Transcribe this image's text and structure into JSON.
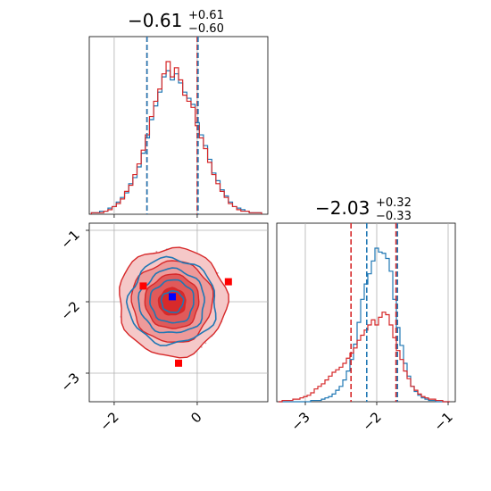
{
  "chart_data": [
    {
      "type": "histogram",
      "panel": "top-left",
      "title": {
        "value": "−0.61",
        "upper": "+0.61",
        "lower": "−0.60"
      },
      "xlim": [
        -2.6,
        1.7
      ],
      "series": [
        {
          "name": "",
          "color": "#1f77b4",
          "bins": [
            -2.5,
            -2.4,
            -2.3,
            -2.2,
            -2.1,
            -2.0,
            -1.9,
            -1.8,
            -1.7,
            -1.6,
            -1.5,
            -1.4,
            -1.3,
            -1.2,
            -1.1,
            -1.0,
            -0.9,
            -0.8,
            -0.7,
            -0.6,
            -0.5,
            -0.4,
            -0.3,
            -0.2,
            -0.1,
            0.0,
            0.1,
            0.2,
            0.3,
            0.4,
            0.5,
            0.6,
            0.7,
            0.8,
            0.9,
            1.0,
            1.1,
            1.2,
            1.3,
            1.4,
            1.5
          ],
          "counts": [
            1,
            1,
            2,
            2,
            4,
            5,
            8,
            11,
            14,
            20,
            24,
            31,
            40,
            50,
            62,
            71,
            80,
            90,
            94,
            88,
            92,
            86,
            80,
            76,
            72,
            60,
            52,
            45,
            36,
            27,
            22,
            16,
            12,
            8,
            5,
            4,
            3,
            2,
            1,
            1,
            1
          ]
        },
        {
          "name": "",
          "color": "#d62728",
          "bins": [
            -2.5,
            -2.4,
            -2.3,
            -2.2,
            -2.1,
            -2.0,
            -1.9,
            -1.8,
            -1.7,
            -1.6,
            -1.5,
            -1.4,
            -1.3,
            -1.2,
            -1.1,
            -1.0,
            -0.9,
            -0.8,
            -0.7,
            -0.6,
            -0.5,
            -0.4,
            -0.3,
            -0.2,
            -0.1,
            0.0,
            0.1,
            0.2,
            0.3,
            0.4,
            0.5,
            0.6,
            0.7,
            0.8,
            0.9,
            1.0,
            1.1,
            1.2,
            1.3,
            1.4,
            1.5
          ],
          "counts": [
            1,
            1,
            1,
            2,
            3,
            5,
            7,
            10,
            15,
            19,
            26,
            33,
            42,
            52,
            64,
            74,
            82,
            92,
            100,
            90,
            96,
            88,
            78,
            74,
            70,
            58,
            50,
            43,
            34,
            26,
            20,
            15,
            11,
            7,
            5,
            3,
            2,
            2,
            1,
            1,
            1
          ]
        }
      ],
      "vlines": [
        {
          "x": -1.21,
          "color": "#d62728"
        },
        {
          "x": -1.21,
          "color": "#1f77b4"
        },
        {
          "x": 0.0,
          "color": "#d62728"
        },
        {
          "x": 0.02,
          "color": "#1f77b4"
        }
      ],
      "xticks": [
        -2,
        0
      ],
      "grid": true
    },
    {
      "type": "contour",
      "panel": "bottom-left",
      "xlim": [
        -2.6,
        1.7
      ],
      "ylim": [
        -3.4,
        -0.9
      ],
      "xtick_labels": [
        "−2",
        "0"
      ],
      "xticks": [
        -2,
        0
      ],
      "ytick_labels": [
        "−1",
        "−2",
        "−3"
      ],
      "yticks": [
        -1,
        -2,
        -3
      ],
      "series": [
        {
          "name": "",
          "color": "#d62728",
          "center": [
            -0.6,
            -2.0
          ],
          "spread": [
            0.65,
            0.38
          ],
          "levels": [
            0.5,
            1.0,
            1.5,
            2.0
          ],
          "filled": true
        },
        {
          "name": "",
          "color": "#1f77b4",
          "center": [
            -0.6,
            -2.0
          ],
          "spread": [
            0.62,
            0.2
          ],
          "levels": [
            0.5,
            1.0,
            1.5,
            2.0
          ],
          "filled": false
        }
      ],
      "points": [
        {
          "x": -1.3,
          "y": -1.78,
          "color": "#ff0000",
          "shape": "square"
        },
        {
          "x": 0.75,
          "y": -1.72,
          "color": "#ff0000",
          "shape": "square"
        },
        {
          "x": -0.45,
          "y": -2.86,
          "color": "#ff0000",
          "shape": "square"
        },
        {
          "x": -0.6,
          "y": -1.93,
          "color": "#0000ff",
          "shape": "square"
        }
      ],
      "grid": true
    },
    {
      "type": "histogram",
      "panel": "bottom-right",
      "title": {
        "value": "−2.03",
        "upper": "+0.32",
        "lower": "−0.33"
      },
      "xlim": [
        -3.4,
        -0.9
      ],
      "xtick_labels": [
        "−3",
        "−2",
        "−1"
      ],
      "xticks": [
        -3,
        -2,
        -1
      ],
      "series": [
        {
          "name": "",
          "color": "#1f77b4",
          "bins": [
            -3.35,
            -3.3,
            -3.25,
            -3.2,
            -3.15,
            -3.1,
            -3.05,
            -3.0,
            -2.95,
            -2.9,
            -2.85,
            -2.8,
            -2.75,
            -2.7,
            -2.65,
            -2.6,
            -2.55,
            -2.5,
            -2.45,
            -2.4,
            -2.35,
            -2.3,
            -2.25,
            -2.2,
            -2.15,
            -2.1,
            -2.05,
            -2.0,
            -1.95,
            -1.9,
            -1.85,
            -1.8,
            -1.75,
            -1.7,
            -1.65,
            -1.6,
            -1.55,
            -1.5,
            -1.45,
            -1.4,
            -1.35,
            -1.3,
            -1.25,
            -1.2,
            -1.15,
            -1.1,
            -1.05,
            -1.0
          ],
          "counts": [
            0,
            0,
            0,
            0,
            0,
            0,
            0,
            0,
            0,
            1,
            1,
            1,
            2,
            3,
            4,
            6,
            9,
            12,
            17,
            24,
            33,
            45,
            62,
            80,
            92,
            100,
            110,
            120,
            117,
            116,
            112,
            102,
            80,
            58,
            44,
            30,
            20,
            12,
            8,
            5,
            3,
            2,
            1,
            1,
            0,
            0,
            0,
            0
          ]
        },
        {
          "name": "",
          "color": "#d62728",
          "bins": [
            -3.35,
            -3.3,
            -3.25,
            -3.2,
            -3.15,
            -3.1,
            -3.05,
            -3.0,
            -2.95,
            -2.9,
            -2.85,
            -2.8,
            -2.75,
            -2.7,
            -2.65,
            -2.6,
            -2.55,
            -2.5,
            -2.45,
            -2.4,
            -2.35,
            -2.3,
            -2.25,
            -2.2,
            -2.15,
            -2.1,
            -2.05,
            -2.0,
            -1.95,
            -1.9,
            -1.85,
            -1.8,
            -1.75,
            -1.7,
            -1.65,
            -1.6,
            -1.55,
            -1.5,
            -1.45,
            -1.4,
            -1.35,
            -1.3,
            -1.25,
            -1.2,
            -1.15,
            -1.1,
            -1.05,
            -1.0
          ],
          "counts": [
            0,
            1,
            1,
            1,
            2,
            2,
            3,
            4,
            5,
            7,
            10,
            12,
            14,
            17,
            20,
            23,
            25,
            27,
            30,
            34,
            38,
            42,
            48,
            52,
            56,
            60,
            64,
            60,
            66,
            70,
            68,
            60,
            50,
            40,
            33,
            24,
            18,
            12,
            9,
            6,
            4,
            3,
            2,
            2,
            1,
            1,
            0,
            0
          ]
        }
      ],
      "vlines": [
        {
          "x": -2.36,
          "color": "#d62728"
        },
        {
          "x": -2.14,
          "color": "#1f77b4"
        },
        {
          "x": -1.73,
          "color": "#d62728"
        },
        {
          "x": -1.71,
          "color": "#1f77b4"
        }
      ],
      "grid": true
    }
  ]
}
